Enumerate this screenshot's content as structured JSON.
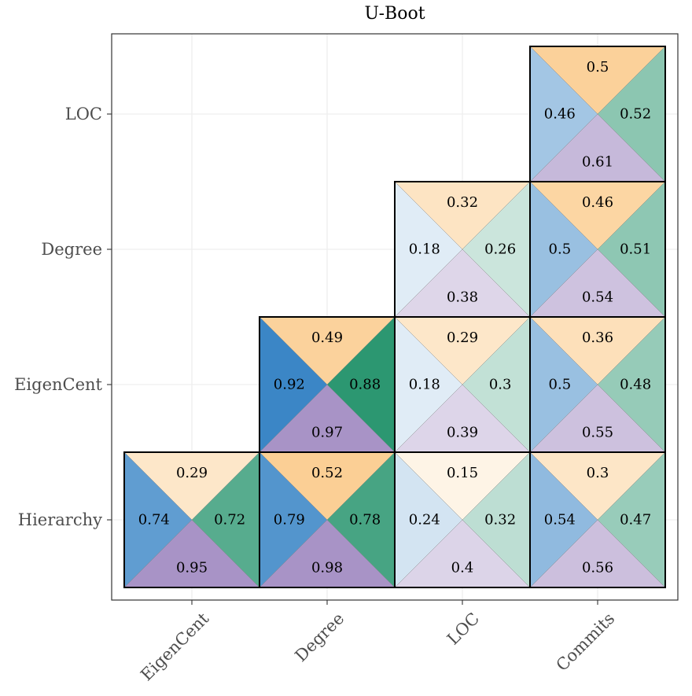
{
  "chart_data": {
    "type": "heatmap",
    "title": "U-Boot",
    "x_categories": [
      "EigenCent",
      "Degree",
      "LOC",
      "Commits"
    ],
    "y_categories": [
      "LOC",
      "Degree",
      "EigenCent",
      "Hierarchy"
    ],
    "triangle_order": [
      "top",
      "right",
      "bottom",
      "left"
    ],
    "series_colors": {
      "top": "#f8a73c",
      "right": "#2a9670",
      "bottom": "#a893c6",
      "left": "#3b86c6"
    },
    "cells": [
      {
        "x": "Commits",
        "y": "LOC",
        "top": 0.5,
        "right": 0.52,
        "bottom": 0.61,
        "left": 0.46
      },
      {
        "x": "LOC",
        "y": "Degree",
        "top": 0.32,
        "right": 0.26,
        "bottom": 0.38,
        "left": 0.18
      },
      {
        "x": "Commits",
        "y": "Degree",
        "top": 0.46,
        "right": 0.51,
        "bottom": 0.54,
        "left": 0.5
      },
      {
        "x": "Degree",
        "y": "EigenCent",
        "top": 0.49,
        "right": 0.88,
        "bottom": 0.97,
        "left": 0.92
      },
      {
        "x": "LOC",
        "y": "EigenCent",
        "top": 0.29,
        "right": 0.3,
        "bottom": 0.39,
        "left": 0.18
      },
      {
        "x": "Commits",
        "y": "EigenCent",
        "top": 0.36,
        "right": 0.48,
        "bottom": 0.55,
        "left": 0.5
      },
      {
        "x": "EigenCent",
        "y": "Hierarchy",
        "top": 0.29,
        "right": 0.72,
        "bottom": 0.95,
        "left": 0.74
      },
      {
        "x": "Degree",
        "y": "Hierarchy",
        "top": 0.52,
        "right": 0.78,
        "bottom": 0.98,
        "left": 0.79
      },
      {
        "x": "LOC",
        "y": "Hierarchy",
        "top": 0.15,
        "right": 0.32,
        "bottom": 0.4,
        "left": 0.24
      },
      {
        "x": "Commits",
        "y": "Hierarchy",
        "top": 0.3,
        "right": 0.47,
        "bottom": 0.56,
        "left": 0.54
      }
    ],
    "grid": true,
    "legend": "none"
  }
}
